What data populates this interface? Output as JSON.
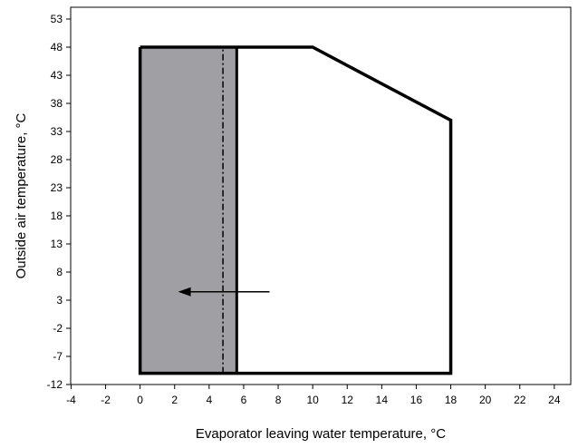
{
  "chart_data": {
    "type": "area",
    "xlabel": "Evaporator leaving water temperature, °C",
    "ylabel": "Outside air temperature, °C",
    "xlim": [
      -4,
      25
    ],
    "ylim": [
      -12,
      55
    ],
    "x_ticks": [
      -4,
      -2,
      0,
      2,
      4,
      6,
      8,
      10,
      12,
      14,
      16,
      18,
      20,
      22,
      24
    ],
    "y_ticks": [
      -12,
      -7,
      -2,
      3,
      8,
      13,
      18,
      23,
      28,
      33,
      38,
      43,
      48,
      53
    ],
    "grid": false,
    "operating_envelope": {
      "x": [
        0,
        10,
        18,
        18,
        0,
        0
      ],
      "y": [
        48,
        48,
        35,
        -10,
        -10,
        48
      ]
    },
    "shaded_region": {
      "x": [
        0,
        5.6
      ],
      "y": [
        -10,
        48
      ],
      "color": "#a0a0a4"
    },
    "dash_dot_line": {
      "x": 4.8,
      "y": [
        -10,
        48
      ]
    },
    "arrow": {
      "from": [
        7.5,
        4.5
      ],
      "to": [
        2.2,
        4.5
      ]
    }
  }
}
